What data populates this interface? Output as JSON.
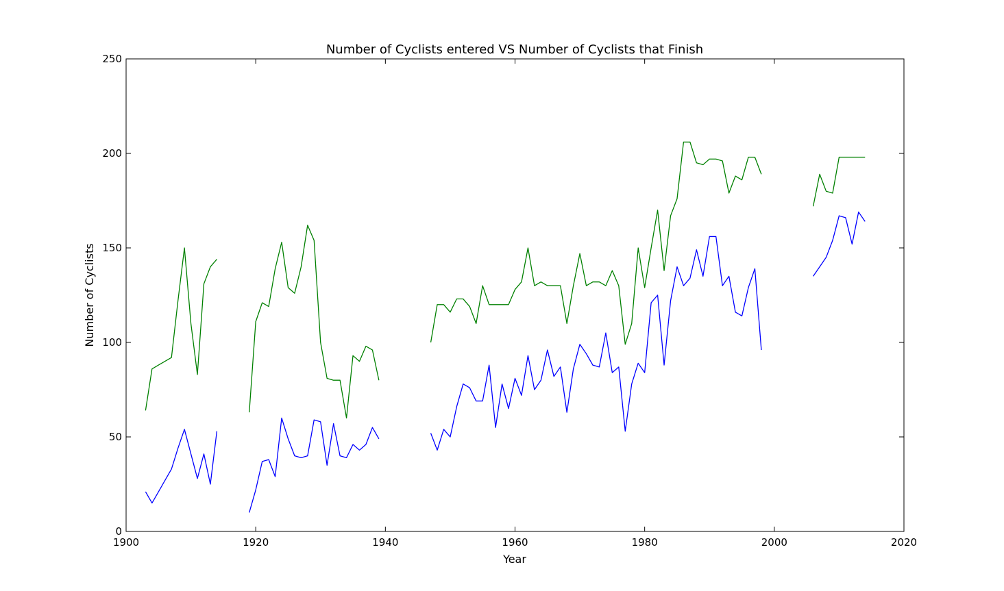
{
  "chart_data": {
    "type": "line",
    "title": "Number of Cyclists entered VS Number of Cyclists that Finish",
    "xlabel": "Year",
    "ylabel": "Number of Cyclists",
    "xlim": [
      1900,
      2020
    ],
    "ylim": [
      0,
      250
    ],
    "xticks": [
      "1900",
      "1920",
      "1940",
      "1960",
      "1980",
      "2000",
      "2020"
    ],
    "yticks": [
      "0",
      "50",
      "100",
      "150",
      "200",
      "250"
    ],
    "grid": false,
    "series": [
      {
        "color": "#008000",
        "segments": [
          [
            [
              1903,
              64
            ],
            [
              1904,
              86
            ],
            [
              1905,
              88
            ],
            [
              1906,
              90
            ],
            [
              1907,
              92
            ],
            [
              1908,
              122
            ],
            [
              1909,
              150
            ],
            [
              1910,
              110
            ],
            [
              1911,
              83
            ],
            [
              1912,
              131
            ],
            [
              1913,
              140
            ],
            [
              1914,
              144
            ]
          ],
          [
            [
              1919,
              63
            ],
            [
              1920,
              111
            ],
            [
              1921,
              121
            ],
            [
              1922,
              119
            ],
            [
              1923,
              139
            ],
            [
              1924,
              153
            ],
            [
              1925,
              129
            ],
            [
              1926,
              126
            ],
            [
              1927,
              140
            ],
            [
              1928,
              162
            ],
            [
              1929,
              154
            ],
            [
              1930,
              100
            ],
            [
              1931,
              81
            ],
            [
              1932,
              80
            ],
            [
              1933,
              80
            ],
            [
              1934,
              60
            ],
            [
              1935,
              93
            ],
            [
              1936,
              90
            ],
            [
              1937,
              98
            ],
            [
              1938,
              96
            ],
            [
              1939,
              80
            ]
          ],
          [
            [
              1947,
              100
            ],
            [
              1948,
              120
            ],
            [
              1949,
              120
            ],
            [
              1950,
              116
            ],
            [
              1951,
              123
            ],
            [
              1952,
              123
            ],
            [
              1953,
              119
            ],
            [
              1954,
              110
            ],
            [
              1955,
              130
            ],
            [
              1956,
              120
            ],
            [
              1957,
              120
            ],
            [
              1958,
              120
            ],
            [
              1959,
              120
            ],
            [
              1960,
              128
            ],
            [
              1961,
              132
            ],
            [
              1962,
              150
            ],
            [
              1963,
              130
            ],
            [
              1964,
              132
            ],
            [
              1965,
              130
            ],
            [
              1966,
              130
            ],
            [
              1967,
              130
            ],
            [
              1968,
              110
            ],
            [
              1969,
              130
            ],
            [
              1970,
              147
            ],
            [
              1971,
              130
            ],
            [
              1972,
              132
            ],
            [
              1973,
              132
            ],
            [
              1974,
              130
            ],
            [
              1975,
              138
            ],
            [
              1976,
              130
            ],
            [
              1977,
              99
            ],
            [
              1978,
              110
            ],
            [
              1979,
              150
            ],
            [
              1980,
              129
            ],
            [
              1981,
              150
            ],
            [
              1982,
              170
            ],
            [
              1983,
              138
            ],
            [
              1984,
              167
            ],
            [
              1985,
              176
            ],
            [
              1986,
              206
            ],
            [
              1987,
              206
            ],
            [
              1988,
              195
            ],
            [
              1989,
              194
            ],
            [
              1990,
              197
            ],
            [
              1991,
              197
            ],
            [
              1992,
              196
            ],
            [
              1993,
              179
            ],
            [
              1994,
              188
            ],
            [
              1995,
              186
            ],
            [
              1996,
              198
            ],
            [
              1997,
              198
            ],
            [
              1998,
              189
            ]
          ],
          [
            [
              2006,
              172
            ],
            [
              2007,
              189
            ],
            [
              2008,
              180
            ],
            [
              2009,
              179
            ],
            [
              2010,
              198
            ],
            [
              2011,
              198
            ],
            [
              2012,
              198
            ],
            [
              2013,
              198
            ],
            [
              2014,
              198
            ]
          ]
        ]
      },
      {
        "color": "#0000ff",
        "segments": [
          [
            [
              1903,
              21
            ],
            [
              1904,
              15
            ],
            [
              1905,
              21
            ],
            [
              1906,
              27
            ],
            [
              1907,
              33
            ],
            [
              1908,
              44
            ],
            [
              1909,
              54
            ],
            [
              1910,
              41
            ],
            [
              1911,
              28
            ],
            [
              1912,
              41
            ],
            [
              1913,
              25
            ],
            [
              1914,
              53
            ]
          ],
          [
            [
              1919,
              10
            ],
            [
              1920,
              22
            ],
            [
              1921,
              37
            ],
            [
              1922,
              38
            ],
            [
              1923,
              29
            ],
            [
              1924,
              60
            ],
            [
              1925,
              49
            ],
            [
              1926,
              40
            ],
            [
              1927,
              39
            ],
            [
              1928,
              40
            ],
            [
              1929,
              59
            ],
            [
              1930,
              58
            ],
            [
              1931,
              35
            ],
            [
              1932,
              57
            ],
            [
              1933,
              40
            ],
            [
              1934,
              39
            ],
            [
              1935,
              46
            ],
            [
              1936,
              43
            ],
            [
              1937,
              46
            ],
            [
              1938,
              55
            ],
            [
              1939,
              49
            ]
          ],
          [
            [
              1947,
              52
            ],
            [
              1948,
              43
            ],
            [
              1949,
              54
            ],
            [
              1950,
              50
            ],
            [
              1951,
              66
            ],
            [
              1952,
              78
            ],
            [
              1953,
              76
            ],
            [
              1954,
              69
            ],
            [
              1955,
              69
            ],
            [
              1956,
              88
            ],
            [
              1957,
              55
            ],
            [
              1958,
              78
            ],
            [
              1959,
              65
            ],
            [
              1960,
              81
            ],
            [
              1961,
              72
            ],
            [
              1962,
              93
            ],
            [
              1963,
              75
            ],
            [
              1964,
              80
            ],
            [
              1965,
              96
            ],
            [
              1966,
              82
            ],
            [
              1967,
              87
            ],
            [
              1968,
              63
            ],
            [
              1969,
              86
            ],
            [
              1970,
              99
            ],
            [
              1971,
              94
            ],
            [
              1972,
              88
            ],
            [
              1973,
              87
            ],
            [
              1974,
              105
            ],
            [
              1975,
              84
            ],
            [
              1976,
              87
            ],
            [
              1977,
              53
            ],
            [
              1978,
              78
            ],
            [
              1979,
              89
            ],
            [
              1980,
              84
            ],
            [
              1981,
              121
            ],
            [
              1982,
              125
            ],
            [
              1983,
              88
            ],
            [
              1984,
              122
            ],
            [
              1985,
              140
            ],
            [
              1986,
              130
            ],
            [
              1987,
              134
            ],
            [
              1988,
              149
            ],
            [
              1989,
              135
            ],
            [
              1990,
              156
            ],
            [
              1991,
              156
            ],
            [
              1992,
              130
            ],
            [
              1993,
              135
            ],
            [
              1994,
              116
            ],
            [
              1995,
              114
            ],
            [
              1996,
              129
            ],
            [
              1997,
              139
            ],
            [
              1998,
              96
            ]
          ],
          [
            [
              2006,
              135
            ],
            [
              2007,
              140
            ],
            [
              2008,
              145
            ],
            [
              2009,
              154
            ],
            [
              2010,
              167
            ],
            [
              2011,
              166
            ],
            [
              2012,
              152
            ],
            [
              2013,
              169
            ],
            [
              2014,
              164
            ]
          ]
        ]
      }
    ]
  }
}
